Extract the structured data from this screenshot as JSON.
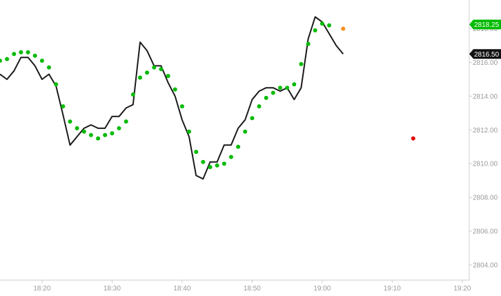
{
  "chart_data": {
    "type": "line",
    "title": "",
    "xlabel": "",
    "ylabel": "",
    "x_ticks": [
      "18:20",
      "18:30",
      "18:40",
      "18:50",
      "19:00",
      "19:10",
      "19:20"
    ],
    "y_ticks": [
      "2804.00",
      "2806.00",
      "2808.00",
      "2810.00",
      "2812.00",
      "2814.00",
      "2816.00",
      "2818.00"
    ],
    "ylim": [
      2803.1,
      2819.7
    ],
    "xlim": [
      "18:14",
      "19:21"
    ],
    "grid": false,
    "legend": "none",
    "series": [
      {
        "style": "line",
        "color": "#1a1a1a",
        "points": [
          [
            "18:14",
            2815.3
          ],
          [
            "18:15",
            2815.0
          ],
          [
            "18:16",
            2815.5
          ],
          [
            "18:17",
            2816.3
          ],
          [
            "18:18",
            2816.3
          ],
          [
            "18:19",
            2815.8
          ],
          [
            "18:20",
            2815.0
          ],
          [
            "18:21",
            2815.3
          ],
          [
            "18:22",
            2814.6
          ],
          [
            "18:23",
            2812.9
          ],
          [
            "18:24",
            2811.1
          ],
          [
            "18:25",
            2811.6
          ],
          [
            "18:26",
            2812.1
          ],
          [
            "18:27",
            2812.3
          ],
          [
            "18:28",
            2812.1
          ],
          [
            "18:29",
            2812.1
          ],
          [
            "18:30",
            2812.8
          ],
          [
            "18:31",
            2812.8
          ],
          [
            "18:32",
            2813.3
          ],
          [
            "18:33",
            2813.5
          ],
          [
            "18:34",
            2817.2
          ],
          [
            "18:35",
            2816.7
          ],
          [
            "18:36",
            2815.8
          ],
          [
            "18:37",
            2815.8
          ],
          [
            "18:38",
            2814.8
          ],
          [
            "18:39",
            2814.0
          ],
          [
            "18:40",
            2812.6
          ],
          [
            "18:41",
            2811.6
          ],
          [
            "18:42",
            2809.3
          ],
          [
            "18:43",
            2809.1
          ],
          [
            "18:44",
            2810.1
          ],
          [
            "18:45",
            2810.1
          ],
          [
            "18:46",
            2811.1
          ],
          [
            "18:47",
            2811.1
          ],
          [
            "18:48",
            2812.1
          ],
          [
            "18:49",
            2812.6
          ],
          [
            "18:50",
            2813.8
          ],
          [
            "18:51",
            2814.3
          ],
          [
            "18:52",
            2814.5
          ],
          [
            "18:53",
            2814.5
          ],
          [
            "18:54",
            2814.3
          ],
          [
            "18:55",
            2814.5
          ],
          [
            "18:56",
            2813.8
          ],
          [
            "18:57",
            2814.5
          ],
          [
            "18:58",
            2817.4
          ],
          [
            "18:59",
            2818.7
          ],
          [
            "19:00",
            2818.4
          ],
          [
            "19:01",
            2817.7
          ],
          [
            "19:02",
            2817.0
          ],
          [
            "19:03",
            2816.5
          ]
        ]
      },
      {
        "style": "dots",
        "color": "#00bb00",
        "points": [
          [
            "18:14",
            2816.1
          ],
          [
            "18:15",
            2816.2
          ],
          [
            "18:16",
            2816.5
          ],
          [
            "18:17",
            2816.6
          ],
          [
            "18:18",
            2816.6
          ],
          [
            "18:19",
            2816.4
          ],
          [
            "18:20",
            2816.1
          ],
          [
            "18:21",
            2815.7
          ],
          [
            "18:22",
            2814.7
          ],
          [
            "18:23",
            2813.4
          ],
          [
            "18:24",
            2812.5
          ],
          [
            "18:25",
            2812.1
          ],
          [
            "18:26",
            2811.9
          ],
          [
            "18:27",
            2811.7
          ],
          [
            "18:28",
            2811.5
          ],
          [
            "18:29",
            2811.7
          ],
          [
            "18:30",
            2811.8
          ],
          [
            "18:31",
            2812.1
          ],
          [
            "18:32",
            2812.5
          ],
          [
            "18:33",
            2814.1
          ],
          [
            "18:34",
            2815.1
          ],
          [
            "18:35",
            2815.4
          ],
          [
            "18:36",
            2815.7
          ],
          [
            "18:37",
            2815.6
          ],
          [
            "18:38",
            2815.2
          ],
          [
            "18:39",
            2814.4
          ],
          [
            "18:40",
            2813.4
          ],
          [
            "18:41",
            2811.9
          ],
          [
            "18:42",
            2810.7
          ],
          [
            "18:43",
            2810.1
          ],
          [
            "18:44",
            2809.8
          ],
          [
            "18:45",
            2809.9
          ],
          [
            "18:46",
            2810.0
          ],
          [
            "18:47",
            2810.4
          ],
          [
            "18:48",
            2811.0
          ],
          [
            "18:49",
            2811.9
          ],
          [
            "18:50",
            2812.7
          ],
          [
            "18:51",
            2813.4
          ],
          [
            "18:52",
            2813.9
          ],
          [
            "18:53",
            2814.2
          ],
          [
            "18:54",
            2814.5
          ],
          [
            "18:55",
            2814.5
          ],
          [
            "18:56",
            2814.7
          ],
          [
            "18:57",
            2815.9
          ],
          [
            "18:58",
            2817.1
          ],
          [
            "18:59",
            2817.9
          ],
          [
            "19:00",
            2818.3
          ],
          [
            "19:01",
            2818.2
          ]
        ]
      },
      {
        "style": "dots",
        "color": "#ff8c1a",
        "points": [
          [
            "19:03",
            2818.0
          ]
        ]
      },
      {
        "style": "dots",
        "color": "#e60000",
        "points": [
          [
            "19:13",
            2811.5
          ]
        ]
      }
    ],
    "price_badges": [
      {
        "value": 2818.25,
        "text": "2818.25",
        "color": "#00bb00"
      },
      {
        "value": 2816.5,
        "text": "2816.50",
        "color": "#111111"
      }
    ]
  }
}
